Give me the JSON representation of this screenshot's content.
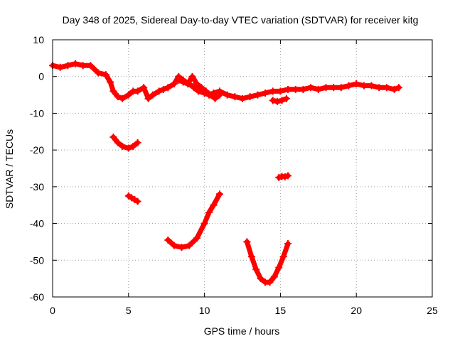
{
  "chart_data": {
    "type": "scatter",
    "title": "Day 348 of 2025, Sidereal Day-to-day VTEC variation (SDTVAR) for receiver kitg",
    "xlabel": "GPS time / hours",
    "ylabel": "SDTVAR / TECUs",
    "xlim": [
      0,
      25
    ],
    "ylim": [
      -60,
      10
    ],
    "xticks": [
      0,
      5,
      10,
      15,
      20,
      25
    ],
    "yticks": [
      -60,
      -50,
      -40,
      -30,
      -20,
      -10,
      0,
      10
    ],
    "grid": true,
    "series_color": "#ff0000",
    "series": [
      {
        "name": "main-trace",
        "x": [
          0.0,
          0.5,
          1.0,
          1.5,
          2.0,
          2.5,
          3.0,
          3.5,
          3.8,
          4.0,
          4.3,
          4.6,
          5.0,
          5.3,
          5.6,
          6.0,
          6.3,
          6.6,
          7.0,
          7.3,
          7.6,
          8.0,
          8.3,
          8.6,
          9.0,
          9.3,
          9.6,
          10.0,
          10.3,
          10.6,
          11.0,
          11.5,
          12.0,
          12.5,
          13.0,
          13.5,
          14.0,
          14.5,
          15.0,
          15.5,
          16.0,
          16.5,
          17.0,
          17.5,
          18.0,
          18.5,
          19.0,
          19.5,
          20.0,
          20.5,
          21.0,
          21.5,
          22.0,
          22.5,
          22.8
        ],
        "y": [
          3,
          2.5,
          3,
          3.5,
          3,
          3,
          1,
          0.5,
          -1.5,
          -4,
          -5.5,
          -6,
          -5,
          -4,
          -4,
          -3,
          -6,
          -5,
          -4,
          -3.5,
          -3,
          -2,
          0,
          -1,
          -2,
          -3,
          -4,
          -4.5,
          -5,
          -4.5,
          -4,
          -5,
          -5.5,
          -6,
          -5.5,
          -5,
          -4.5,
          -4,
          -4,
          -3.5,
          -3.5,
          -3.5,
          -3,
          -3.5,
          -3,
          -3,
          -3,
          -2.5,
          -2,
          -2.5,
          -2.5,
          -3,
          -3,
          -3.5,
          -3
        ]
      },
      {
        "name": "bump-9h",
        "x": [
          8.3,
          8.6,
          8.9,
          9.2,
          9.5,
          9.8,
          10.1,
          10.4,
          10.7,
          11.0
        ],
        "y": [
          -1,
          -1.5,
          -2,
          0,
          -2,
          -3,
          -4,
          -5,
          -6,
          -5
        ]
      },
      {
        "name": "segment-4h",
        "x": [
          4.0,
          4.3,
          4.6,
          5.0,
          5.3,
          5.6
        ],
        "y": [
          -16.5,
          -18,
          -19,
          -19.5,
          -19,
          -18
        ]
      },
      {
        "name": "segment-5h",
        "x": [
          5.0,
          5.2,
          5.4,
          5.6
        ],
        "y": [
          -32.5,
          -33,
          -33.5,
          -34
        ]
      },
      {
        "name": "arc-9h",
        "x": [
          7.6,
          8.0,
          8.5,
          9.0,
          9.5,
          10.0,
          10.3,
          10.6,
          11.0
        ],
        "y": [
          -44.5,
          -46,
          -46.5,
          -46,
          -44,
          -40,
          -37,
          -35,
          -32
        ]
      },
      {
        "name": "arc-14h",
        "x": [
          12.8,
          13.1,
          13.4,
          13.7,
          14.0,
          14.3,
          14.6,
          14.9,
          15.2,
          15.5
        ],
        "y": [
          -45,
          -49,
          -52.5,
          -55,
          -56,
          -56,
          -54.5,
          -52,
          -49,
          -45.5
        ]
      },
      {
        "name": "segment-15h",
        "x": [
          14.9,
          15.1,
          15.3,
          15.5
        ],
        "y": [
          -27.5,
          -27.2,
          -27.3,
          -27
        ]
      },
      {
        "name": "segment-15h-upper",
        "x": [
          14.5,
          14.8,
          15.1,
          15.4
        ],
        "y": [
          -6.5,
          -6.8,
          -6.5,
          -6
        ]
      }
    ]
  }
}
